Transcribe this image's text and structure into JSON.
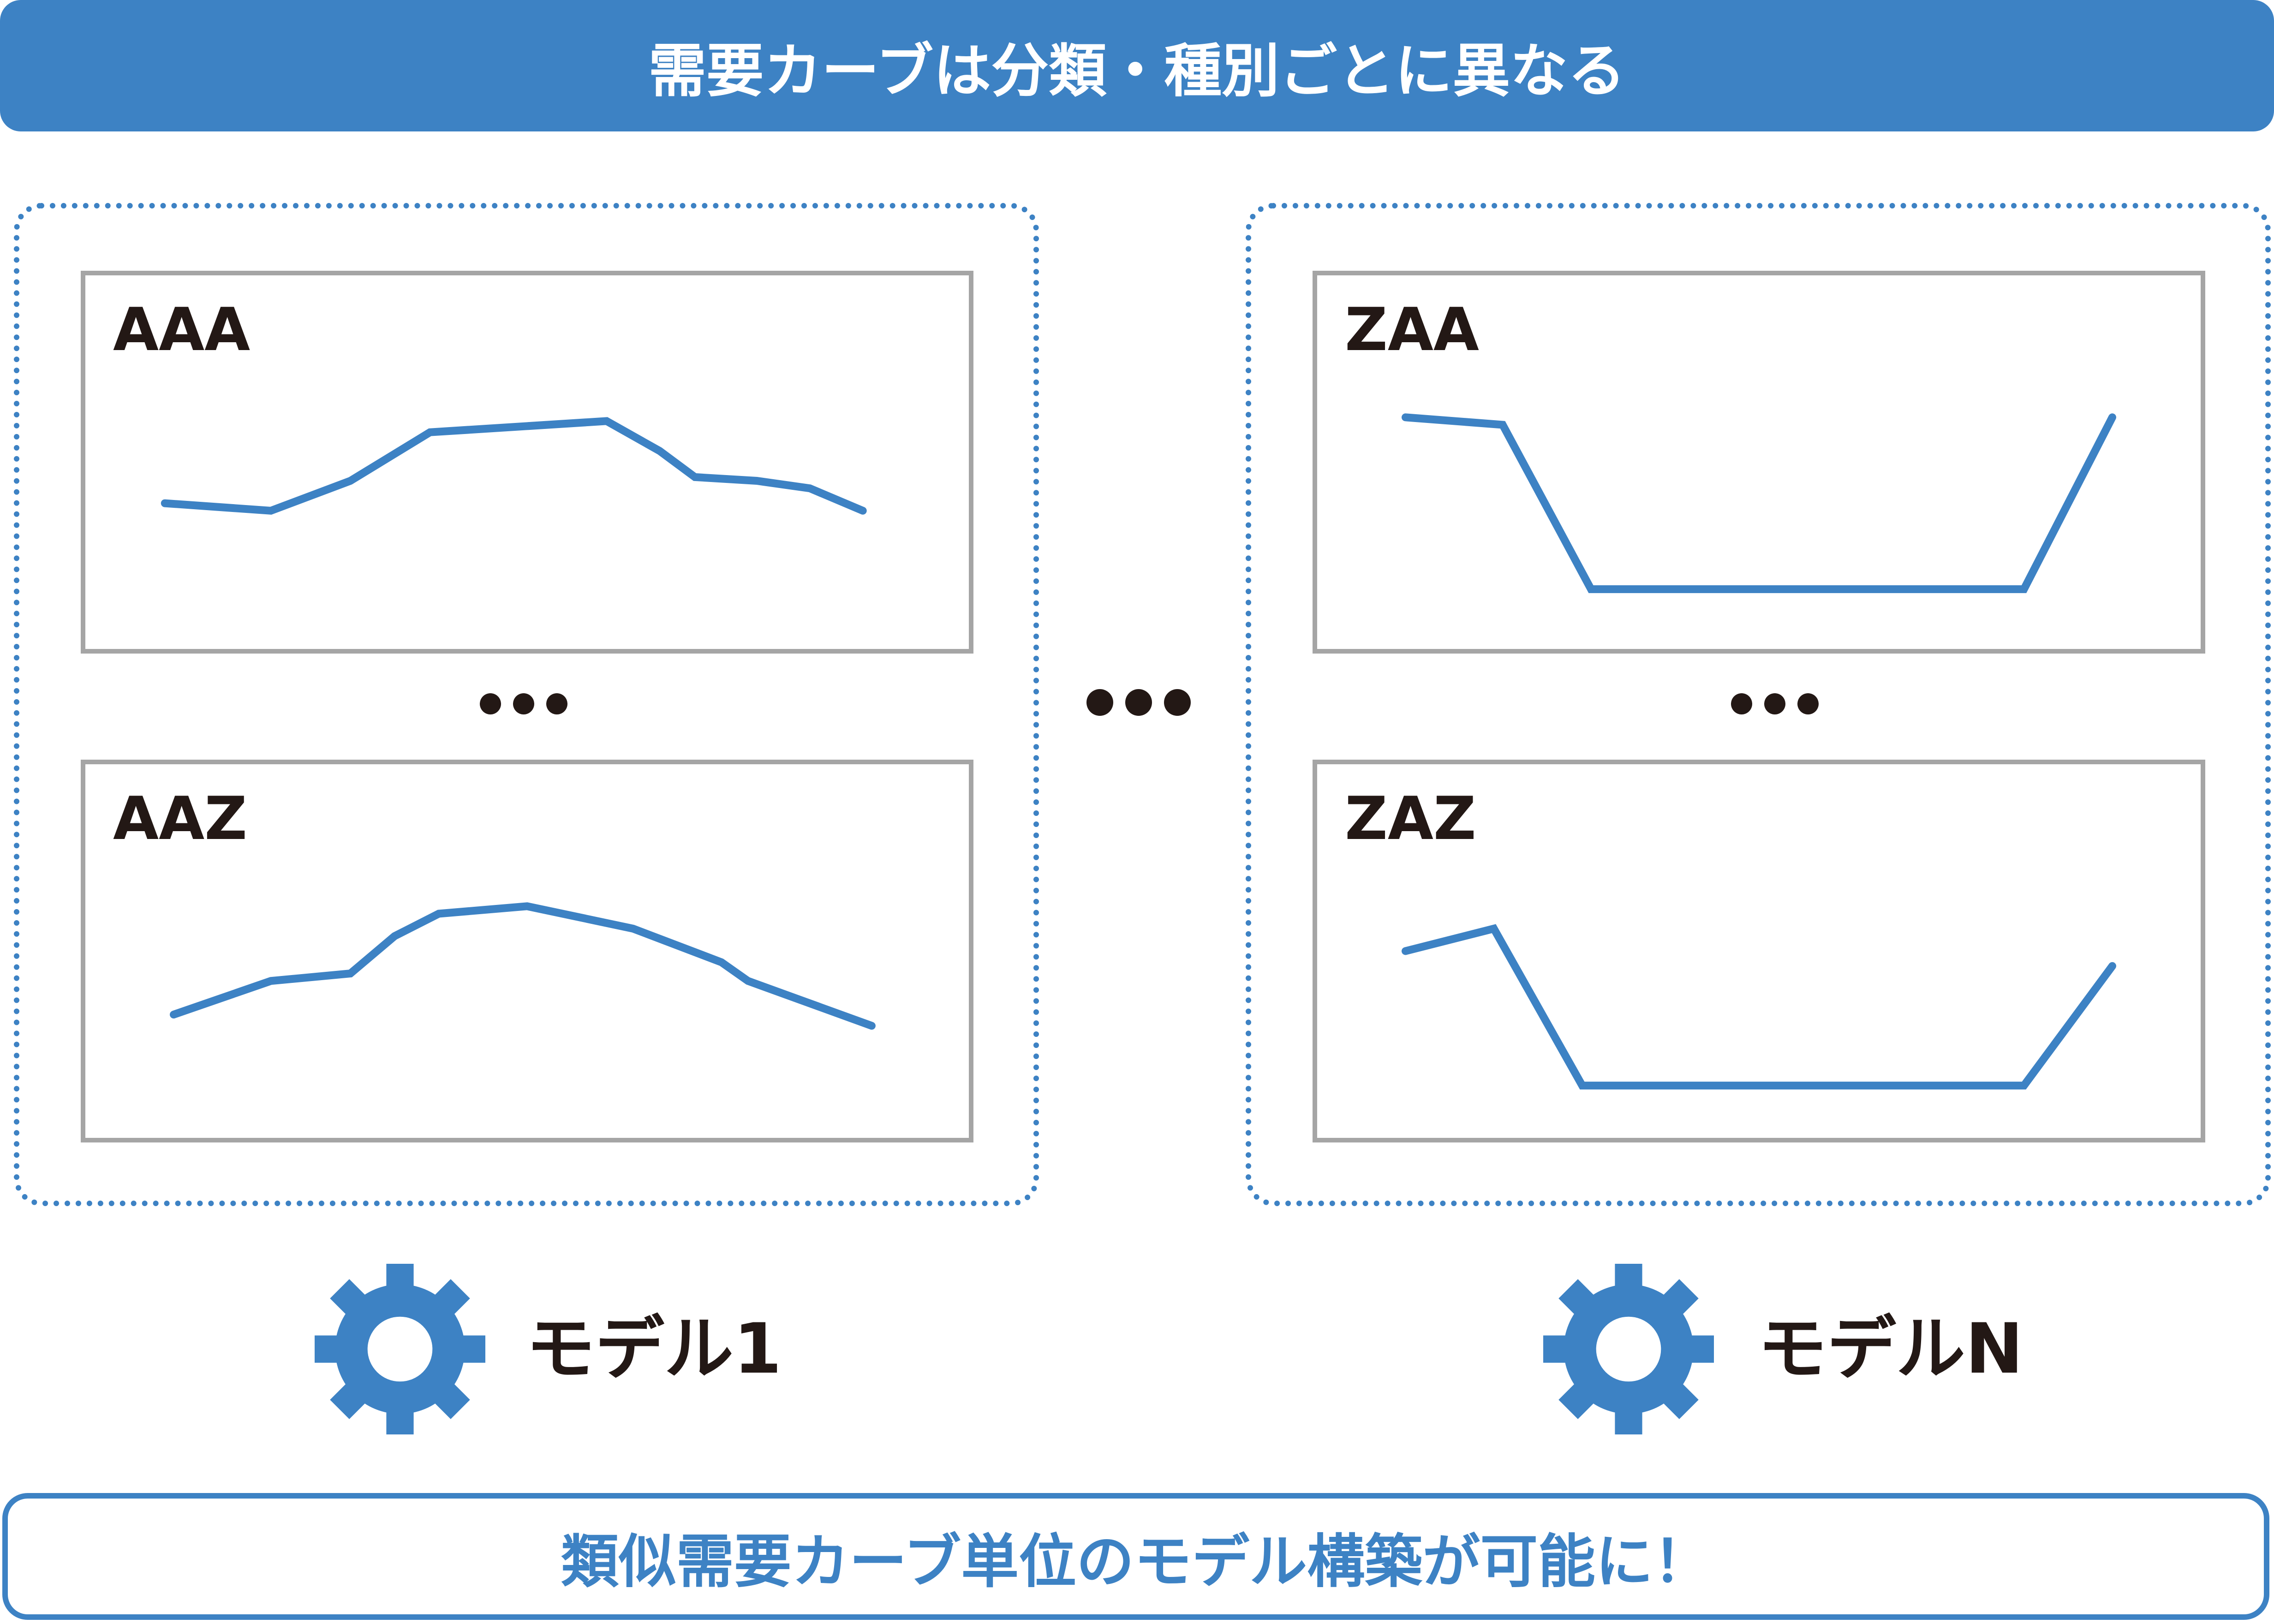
{
  "header": {
    "title": "需要カーブは分類・種別ごとに異なる"
  },
  "groups": [
    {
      "panels": [
        {
          "title": "AAA",
          "points": [
            [
              0.09,
              0.61
            ],
            [
              0.21,
              0.63
            ],
            [
              0.3,
              0.55
            ],
            [
              0.39,
              0.42
            ],
            [
              0.59,
              0.39
            ],
            [
              0.65,
              0.47
            ],
            [
              0.69,
              0.54
            ],
            [
              0.76,
              0.55
            ],
            [
              0.82,
              0.57
            ],
            [
              0.88,
              0.63
            ]
          ]
        },
        {
          "title": "AAZ",
          "points": [
            [
              0.1,
              0.67
            ],
            [
              0.21,
              0.58
            ],
            [
              0.3,
              0.56
            ],
            [
              0.35,
              0.46
            ],
            [
              0.4,
              0.4
            ],
            [
              0.5,
              0.38
            ],
            [
              0.62,
              0.44
            ],
            [
              0.72,
              0.53
            ],
            [
              0.75,
              0.58
            ],
            [
              0.89,
              0.7
            ]
          ]
        }
      ],
      "model_label": "モデル1"
    },
    {
      "panels": [
        {
          "title": "ZAA",
          "points": [
            [
              0.1,
              0.38
            ],
            [
              0.21,
              0.4
            ],
            [
              0.31,
              0.84
            ],
            [
              0.8,
              0.84
            ],
            [
              0.9,
              0.38
            ]
          ]
        },
        {
          "title": "ZAZ",
          "points": [
            [
              0.1,
              0.5
            ],
            [
              0.2,
              0.44
            ],
            [
              0.3,
              0.86
            ],
            [
              0.8,
              0.86
            ],
            [
              0.9,
              0.54
            ]
          ]
        }
      ],
      "model_label": "モデルN"
    }
  ],
  "colors": {
    "accent": "#3d82c4",
    "panel_border": "#a5a5a5",
    "text_dark": "#231815"
  },
  "icons": {
    "model": "gear-icon",
    "ellipsis": "ellipsis-icon"
  },
  "footer": {
    "text": "類似需要カーブ単位のモデル構築が可能に！"
  }
}
